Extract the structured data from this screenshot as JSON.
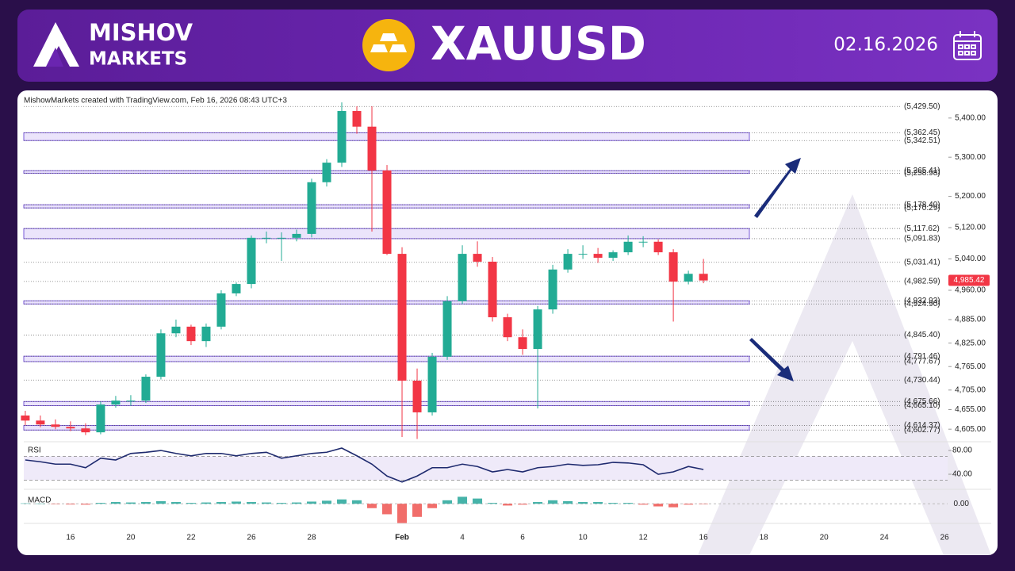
{
  "header": {
    "brand_line1": "MISHOV",
    "brand_line2": "MARKETS",
    "symbol": "XAUUSD",
    "date": "02.16.2026"
  },
  "chart_data": [
    {
      "type": "candlestick",
      "attribution": "MishowMarkets created with TradingView.com, Feb 16, 2026 08:43 UTC+3",
      "up_color": "#22ab94",
      "down_color": "#f23645",
      "x": [
        -1.5,
        -1,
        -0.5,
        0,
        0.5,
        1,
        1.5,
        2,
        2.5,
        3,
        3.5,
        4,
        4.5,
        5,
        5.5,
        6,
        6.5,
        7,
        7.5,
        8,
        8.5,
        9,
        9.5,
        10,
        10.5,
        11,
        11.5,
        12,
        12.5,
        13,
        13.5,
        14,
        14.5,
        15,
        15.5,
        16,
        16.5,
        17,
        17.5,
        18,
        18.5,
        19,
        19.5,
        20,
        20.5,
        21
      ],
      "open": [
        4640,
        4627,
        4617,
        4611,
        4607,
        4597,
        4668,
        4678,
        4678,
        4739,
        4850,
        4867,
        4830,
        4867,
        4952,
        4976,
        5094,
        5094,
        5094,
        5104,
        5236,
        5286,
        5418,
        5378,
        5266,
        5053,
        4729,
        4648,
        4790,
        4932,
        5053,
        5033,
        4891,
        4840,
        4810,
        4911,
        5013,
        5053,
        5053,
        5043,
        5057,
        5084,
        5084,
        5057,
        4982,
        5002
      ],
      "high": [
        4652,
        4640,
        4630,
        4625,
        4620,
        4675,
        4690,
        4692,
        4745,
        4860,
        4885,
        4872,
        4875,
        4960,
        4980,
        5100,
        5110,
        5108,
        5115,
        5245,
        5295,
        5440,
        5430,
        5430,
        5280,
        5070,
        4760,
        4800,
        4945,
        5075,
        5085,
        5045,
        4900,
        4860,
        4920,
        5025,
        5065,
        5075,
        5068,
        5062,
        5100,
        5098,
        5090,
        5065,
        5010,
        5040
      ],
      "low": [
        4615,
        4610,
        4605,
        4600,
        4590,
        4592,
        4660,
        4665,
        4672,
        4732,
        4840,
        4820,
        4815,
        4860,
        4945,
        4965,
        5080,
        5035,
        5085,
        5095,
        5225,
        5275,
        5360,
        5110,
        5050,
        4585,
        4580,
        4640,
        4782,
        4925,
        5020,
        4880,
        4830,
        4795,
        4658,
        4900,
        5005,
        5040,
        5030,
        5035,
        5050,
        5070,
        5050,
        4880,
        4975,
        4978
      ],
      "close": [
        4627,
        4617,
        4611,
        4607,
        4597,
        4668,
        4678,
        4678,
        4739,
        4850,
        4867,
        4830,
        4867,
        4952,
        4976,
        5094,
        5094,
        5094,
        5104,
        5236,
        5286,
        5418,
        5378,
        5266,
        5053,
        4729,
        4648,
        4790,
        4932,
        5053,
        5033,
        4891,
        4840,
        4810,
        4911,
        5013,
        5053,
        5053,
        5043,
        5057,
        5084,
        5084,
        5057,
        4982,
        5002,
        4985
      ],
      "xlim": [
        -1.55,
        29.1
      ],
      "xticks": [
        {
          "value": 0,
          "label": "16"
        },
        {
          "value": 2,
          "label": "20"
        },
        {
          "value": 4,
          "label": "22"
        },
        {
          "value": 6,
          "label": "26"
        },
        {
          "value": 8,
          "label": "28"
        },
        {
          "value": 11,
          "label": "Feb"
        },
        {
          "value": 13,
          "label": "4"
        },
        {
          "value": 15,
          "label": "6"
        },
        {
          "value": 17,
          "label": "10"
        },
        {
          "value": 19,
          "label": "12"
        },
        {
          "value": 21,
          "label": "16"
        },
        {
          "value": 23,
          "label": "18"
        },
        {
          "value": 25,
          "label": "20"
        },
        {
          "value": 27,
          "label": "24"
        },
        {
          "value": 29,
          "label": "26"
        }
      ],
      "ylim": [
        4577,
        5424
      ],
      "yticks": [
        {
          "value": 5400,
          "label": "5,400.00"
        },
        {
          "value": 5300,
          "label": "5,300.00"
        },
        {
          "value": 5200,
          "label": "5,200.00"
        },
        {
          "value": 5120,
          "label": "5,120.00"
        },
        {
          "value": 5040,
          "label": "5,040.00"
        },
        {
          "value": 4960,
          "label": "4,960.00"
        },
        {
          "value": 4885,
          "label": "4,885.00"
        },
        {
          "value": 4825,
          "label": "4,825.00"
        },
        {
          "value": 4765,
          "label": "4,765.00"
        },
        {
          "value": 4705,
          "label": "4,705.00"
        },
        {
          "value": 4655,
          "label": "4,655.00"
        },
        {
          "value": 4605,
          "label": "4,605.00"
        }
      ],
      "levels": [
        {
          "value": 5429.5,
          "label": "(5,429.50)"
        },
        {
          "value": 5362.45,
          "label": "(5,362.45)"
        },
        {
          "value": 5342.51,
          "label": "(5,342.51)"
        },
        {
          "value": 5265.41,
          "label": "(5,265.41)"
        },
        {
          "value": 5258.98,
          "label": "(5,258.98)"
        },
        {
          "value": 5178.4,
          "label": "(5,178.40)"
        },
        {
          "value": 5170.29,
          "label": "(5,170.29)"
        },
        {
          "value": 5117.62,
          "label": "(5,117.62)"
        },
        {
          "value": 5091.83,
          "label": "(5,091.83)"
        },
        {
          "value": 5031.41,
          "label": "(5,031.41)"
        },
        {
          "value": 4982.59,
          "label": "(4,982.59)"
        },
        {
          "value": 4932.93,
          "label": "(4,932.93)"
        },
        {
          "value": 4924.9,
          "label": "(4,924.90)"
        },
        {
          "value": 4845.4,
          "label": "(4,845.40)"
        },
        {
          "value": 4791.46,
          "label": "(4,791.46)"
        },
        {
          "value": 4777.67,
          "label": "(4,777.67)"
        },
        {
          "value": 4730.44,
          "label": "(4,730.44)"
        },
        {
          "value": 4675.66,
          "label": "(4,675.66)"
        },
        {
          "value": 4665.1,
          "label": "(4,665.10)"
        },
        {
          "value": 4614.37,
          "label": "(4,614.37)"
        },
        {
          "value": 4602.77,
          "label": "(4,602.77)"
        }
      ],
      "last_price": {
        "value": 4985.42,
        "label": "4,985.42"
      }
    },
    {
      "type": "line",
      "title": "RSI",
      "color": "#1e2a6e",
      "values": [
        64,
        61,
        57,
        57,
        51,
        67,
        64,
        75,
        77,
        80,
        75,
        71,
        75,
        75,
        71,
        75,
        77,
        67,
        71,
        75,
        77,
        84,
        71,
        57,
        37,
        27,
        37,
        51,
        51,
        57,
        53,
        44,
        48,
        44,
        51,
        53,
        57,
        55,
        56,
        60,
        59,
        56,
        40,
        44,
        53,
        48
      ],
      "band": [
        30,
        70
      ],
      "ylim": [
        24,
        90.7
      ],
      "yticks": [
        {
          "value": 80,
          "label": "80.00"
        },
        {
          "value": 40,
          "label": "40.00"
        }
      ]
    },
    {
      "type": "bar",
      "title": "MACD",
      "up_color": "#26a69a",
      "down_color": "#ef5350",
      "values": [
        0.5,
        0.3,
        -0.5,
        -0.8,
        -1,
        1,
        2,
        1.5,
        2,
        3,
        2,
        1,
        1.5,
        2,
        2.5,
        2,
        1.5,
        1,
        1.5,
        2.5,
        3.5,
        5,
        4,
        -5,
        -12,
        -22,
        -15,
        -5,
        4,
        8,
        6,
        1,
        -2,
        -1,
        2,
        4,
        3,
        2,
        2,
        1,
        1,
        -1,
        -3,
        -4,
        -1,
        -0.5
      ],
      "ylim": [
        -27,
        12
      ],
      "yticks": [
        {
          "value": 0,
          "label": "0.00"
        }
      ]
    }
  ]
}
